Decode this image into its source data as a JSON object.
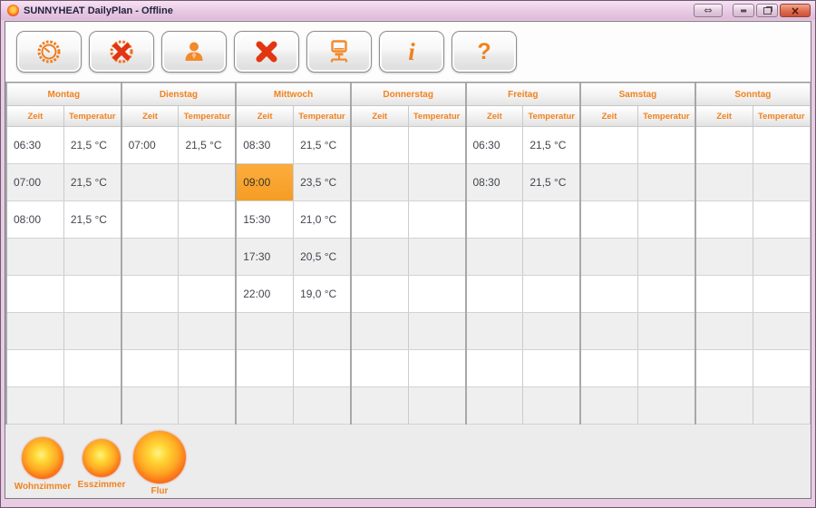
{
  "window": {
    "title": "SUNNYHEAT DailyPlan - Offline",
    "controls": {
      "resize_glyph": "⇔",
      "minimize_glyph": "▬",
      "close_glyph": "×"
    }
  },
  "toolbar": {
    "buttons": [
      {
        "name": "timer",
        "icon": "clock-timer-icon"
      },
      {
        "name": "delete-timer",
        "icon": "clock-delete-icon"
      },
      {
        "name": "user",
        "icon": "user-icon"
      },
      {
        "name": "delete",
        "icon": "delete-x-icon"
      },
      {
        "name": "network",
        "icon": "computer-network-icon"
      },
      {
        "name": "info",
        "icon": "info-icon"
      },
      {
        "name": "help",
        "icon": "help-icon"
      }
    ]
  },
  "schedule": {
    "subheaders": {
      "time": "Zeit",
      "temp": "Temperatur"
    },
    "row_count": 8,
    "selected": {
      "day": "Mittwoch",
      "time": "09:00"
    },
    "days": [
      {
        "label": "Montag",
        "entries": [
          {
            "time": "06:30",
            "temp": "21,5 °C"
          },
          {
            "time": "07:00",
            "temp": "21,5 °C"
          },
          {
            "time": "08:00",
            "temp": "21,5 °C"
          }
        ]
      },
      {
        "label": "Dienstag",
        "entries": [
          {
            "time": "07:00",
            "temp": "21,5 °C"
          }
        ]
      },
      {
        "label": "Mittwoch",
        "entries": [
          {
            "time": "08:30",
            "temp": "21,5 °C"
          },
          {
            "time": "09:00",
            "temp": "23,5 °C",
            "selected": true
          },
          {
            "time": "15:30",
            "temp": "21,0 °C"
          },
          {
            "time": "17:30",
            "temp": "20,5 °C"
          },
          {
            "time": "22:00",
            "temp": "19,0 °C"
          }
        ]
      },
      {
        "label": "Donnerstag",
        "entries": []
      },
      {
        "label": "Freitag",
        "entries": [
          {
            "time": "06:30",
            "temp": "21,5 °C"
          },
          {
            "time": "08:30",
            "temp": "21,5 °C"
          }
        ]
      },
      {
        "label": "Samstag",
        "entries": []
      },
      {
        "label": "Sonntag",
        "entries": []
      }
    ]
  },
  "rooms": [
    {
      "label": "Wohnzimmer",
      "size": 46
    },
    {
      "label": "Esszimmer",
      "size": 42
    },
    {
      "label": "Flur",
      "size": 58
    }
  ],
  "colors": {
    "accent_orange": "#f0831e",
    "selected_cell": "#f8a12f",
    "frame_pink": "#e9cce4",
    "row_stripe": "#efefef"
  }
}
